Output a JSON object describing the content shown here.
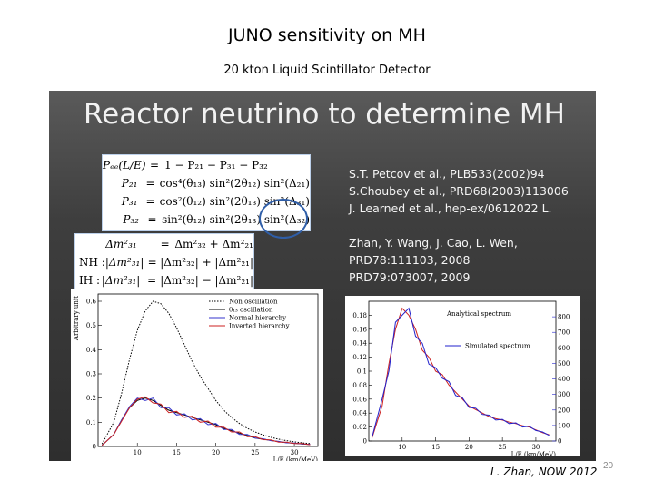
{
  "page": {
    "title": "JUNO sensitivity on MH",
    "subtitle": "20 kton Liquid Scintillator Detector",
    "footer_credit": "L. Zhan, NOW 2012",
    "page_number": "20"
  },
  "slide": {
    "heading": "Reactor neutrino to determine MH",
    "probability_equations": [
      {
        "lhs": "Pₑₑ(L/E)",
        "rhs": "1 − P₂₁ − P₃₁ − P₃₂"
      },
      {
        "lhs": "P₂₁",
        "rhs": "cos⁴(θ₁₃) sin²(2θ₁₂) sin²(Δ₂₁)"
      },
      {
        "lhs": "P₃₁",
        "rhs": "cos²(θ₁₂) sin²(2θ₁₃) sin²(Δ₃₁)"
      },
      {
        "lhs": "P₃₂",
        "rhs": "sin²(θ₁₂) sin²(2θ₁₃) sin²(Δ₃₂)"
      }
    ],
    "mass_equations": [
      {
        "label": "",
        "lhs": "Δm²₃₁",
        "rhs": "Δm²₃₂ + Δm²₂₁"
      },
      {
        "label": "NH :",
        "lhs": "|Δm²₃₁|",
        "rhs": "|Δm²₃₂| + |Δm²₂₁|"
      },
      {
        "label": "IH :",
        "lhs": "|Δm²₃₁|",
        "rhs": "|Δm²₃₂| − |Δm²₂₁|"
      }
    ],
    "references_group1": [
      "S.T. Petcov et al., PLB533(2002)94",
      "S.Choubey et al., PRD68(2003)113006",
      "J. Learned et al., hep-ex/0612022 L."
    ],
    "references_group2": [
      "Zhan, Y. Wang, J. Cao, L. Wen,",
      "PRD78:111103, 2008",
      "PRD79:073007, 2009"
    ]
  },
  "chart_data": [
    {
      "type": "line",
      "ylabel": "Arbitrary unit",
      "xlabel": "L/E (km/MeV)",
      "x_ticks": [
        10,
        15,
        20,
        25,
        30
      ],
      "y_ticks": [
        0,
        0.1,
        0.2,
        0.3,
        0.4,
        0.5,
        0.6
      ],
      "xlim": [
        5,
        33
      ],
      "ylim": [
        0,
        0.63
      ],
      "legend_position": "top-right",
      "series": [
        {
          "name": "Non oscillation",
          "color": "#000000",
          "style": "dotted",
          "x": [
            5.5,
            7,
            8,
            9,
            10,
            11,
            12,
            13,
            14,
            15,
            16,
            17,
            18,
            19,
            20,
            21,
            22,
            23,
            24,
            25,
            26,
            27,
            28,
            29,
            30,
            31,
            32
          ],
          "y": [
            0.01,
            0.1,
            0.22,
            0.36,
            0.48,
            0.56,
            0.6,
            0.59,
            0.55,
            0.49,
            0.42,
            0.35,
            0.29,
            0.24,
            0.19,
            0.15,
            0.12,
            0.095,
            0.075,
            0.06,
            0.048,
            0.038,
            0.03,
            0.024,
            0.019,
            0.015,
            0.012
          ]
        },
        {
          "name": "θ₁₃ oscillation",
          "color": "#000000",
          "style": "solid",
          "x": [
            5.5,
            7,
            8,
            9,
            10,
            11,
            12,
            13,
            14,
            15,
            16,
            17,
            18,
            19,
            20,
            21,
            22,
            23,
            24,
            25,
            26,
            27,
            28,
            29,
            30,
            31,
            32
          ],
          "y": [
            0.005,
            0.05,
            0.11,
            0.16,
            0.19,
            0.2,
            0.19,
            0.17,
            0.15,
            0.14,
            0.13,
            0.12,
            0.11,
            0.1,
            0.09,
            0.075,
            0.065,
            0.055,
            0.045,
            0.035,
            0.03,
            0.025,
            0.02,
            0.016,
            0.013,
            0.01,
            0.008
          ]
        },
        {
          "name": "Normal hierarchy",
          "color": "#3333cc",
          "style": "solid",
          "x": [
            5.5,
            7,
            8,
            9,
            10,
            11,
            12,
            13,
            14,
            15,
            16,
            17,
            18,
            19,
            20,
            21,
            22,
            23,
            24,
            25,
            26,
            27,
            28,
            29,
            30,
            31,
            32
          ],
          "y": [
            0.005,
            0.05,
            0.11,
            0.165,
            0.2,
            0.19,
            0.2,
            0.16,
            0.16,
            0.13,
            0.135,
            0.11,
            0.115,
            0.09,
            0.095,
            0.07,
            0.07,
            0.05,
            0.05,
            0.035,
            0.032,
            0.024,
            0.021,
            0.015,
            0.014,
            0.01,
            0.009
          ]
        },
        {
          "name": "Inverted hierarchy",
          "color": "#cc2222",
          "style": "solid",
          "x": [
            5.5,
            7,
            8,
            9,
            10,
            11,
            12,
            13,
            14,
            15,
            16,
            17,
            18,
            19,
            20,
            21,
            22,
            23,
            24,
            25,
            26,
            27,
            28,
            29,
            30,
            31,
            32
          ],
          "y": [
            0.005,
            0.05,
            0.105,
            0.16,
            0.195,
            0.205,
            0.18,
            0.175,
            0.14,
            0.145,
            0.12,
            0.125,
            0.1,
            0.105,
            0.08,
            0.08,
            0.06,
            0.06,
            0.04,
            0.04,
            0.028,
            0.027,
            0.018,
            0.018,
            0.012,
            0.012,
            0.007
          ]
        }
      ]
    },
    {
      "type": "line",
      "xlabel": "L/E (km/MeV)",
      "x_ticks": [
        10,
        15,
        20,
        25,
        30
      ],
      "y_ticks": [
        0,
        0.02,
        0.04,
        0.06,
        0.08,
        0.1,
        0.12,
        0.14,
        0.16,
        0.18
      ],
      "y_tick_labels": [
        "0",
        "0.02",
        "0.04",
        "0.06",
        "0.08",
        "0.1",
        "0.12",
        "0.14",
        "0.16",
        "0.18"
      ],
      "y2_ticks": [
        0,
        100,
        200,
        300,
        400,
        500,
        600,
        700,
        800
      ],
      "xlim": [
        5,
        33
      ],
      "ylim": [
        0,
        0.2
      ],
      "y2lim": [
        0,
        900
      ],
      "annotations": [
        "Analytical spectrum"
      ],
      "legend_position": "center-right",
      "series": [
        {
          "name": "Analytical spectrum",
          "color": "#cc2222",
          "style": "solid",
          "x": [
            5.5,
            7,
            8,
            9,
            10,
            11,
            12,
            13,
            14,
            15,
            16,
            17,
            18,
            19,
            20,
            21,
            22,
            23,
            24,
            25,
            26,
            27,
            28,
            29,
            30,
            31,
            32
          ],
          "y": [
            0.005,
            0.05,
            0.11,
            0.16,
            0.19,
            0.18,
            0.16,
            0.13,
            0.12,
            0.1,
            0.095,
            0.08,
            0.07,
            0.06,
            0.05,
            0.045,
            0.04,
            0.035,
            0.032,
            0.03,
            0.027,
            0.025,
            0.022,
            0.02,
            0.016,
            0.012,
            0.009
          ]
        },
        {
          "name": "Simulated spectrum",
          "color": "#2222cc",
          "style": "solid",
          "x": [
            5.5,
            7,
            8,
            9,
            10,
            11,
            12,
            13,
            14,
            15,
            16,
            17,
            18,
            19,
            20,
            21,
            22,
            23,
            24,
            25,
            26,
            27,
            28,
            29,
            30,
            31,
            32
          ],
          "y": [
            0.006,
            0.06,
            0.1,
            0.17,
            0.18,
            0.19,
            0.15,
            0.14,
            0.11,
            0.105,
            0.09,
            0.085,
            0.065,
            0.062,
            0.048,
            0.047,
            0.038,
            0.037,
            0.03,
            0.031,
            0.025,
            0.026,
            0.02,
            0.021,
            0.015,
            0.013,
            0.008
          ]
        }
      ]
    }
  ]
}
